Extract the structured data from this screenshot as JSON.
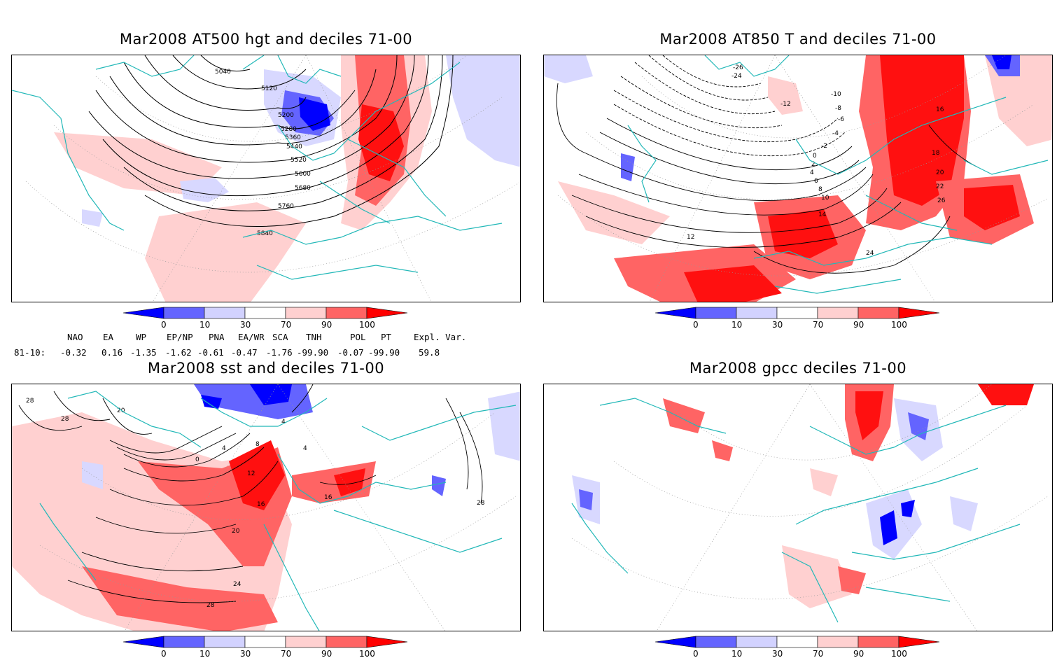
{
  "panels": [
    {
      "id": "p1",
      "title": "Mar2008 AT500 hgt and deciles 71-00",
      "contour_labels": [
        "5040",
        "5120",
        "5200",
        "5280",
        "5360",
        "5440",
        "5520",
        "5600",
        "5680",
        "5760",
        "5840"
      ]
    },
    {
      "id": "p2",
      "title": "Mar2008 AT850 T and deciles 71-00",
      "contour_labels": [
        "-26",
        "-24",
        "-12",
        "-10",
        "-8",
        "-6",
        "-4",
        "-2",
        "0",
        "2",
        "4",
        "6",
        "8",
        "10",
        "12",
        "14",
        "16",
        "18",
        "20",
        "22",
        "24",
        "26"
      ]
    },
    {
      "id": "p3",
      "title": "Mar2008 sst and deciles 71-00",
      "contour_labels": [
        "28",
        "28",
        "20",
        "0",
        "4",
        "8",
        "4",
        "4",
        "12",
        "16",
        "16",
        "20",
        "24",
        "28",
        "28"
      ]
    },
    {
      "id": "p4",
      "title": "Mar2008 gpcc deciles 71-00",
      "contour_labels": []
    }
  ],
  "colorbar": {
    "ticks": [
      "0",
      "10",
      "30",
      "70",
      "90",
      "100"
    ],
    "colors": [
      "#0000ff",
      "#6464ff",
      "#d2d2ff",
      "#ffffff",
      "#ffd0d0",
      "#ff6464",
      "#ff0000"
    ]
  },
  "indices": {
    "period": "81-10:",
    "names": [
      "NAO",
      "EA",
      "WP",
      "EP/NP",
      "PNA",
      "EA/WR",
      "SCA",
      "TNH",
      "POL",
      "PT",
      "Expl. Var."
    ],
    "values": [
      "-0.32",
      "0.16",
      "-1.35",
      "-1.62",
      "-0.61",
      "-0.47",
      "-1.76",
      "-99.90",
      "-0.07",
      "-99.90",
      "59.8"
    ]
  },
  "colors": {
    "coast": "#22b8b8",
    "strong_pos": "#ff1010",
    "mid_pos": "#ff6464",
    "weak_pos": "#ffd0d0",
    "weak_neg": "#d8d8ff",
    "mid_neg": "#6464ff",
    "strong_neg": "#0000ff"
  }
}
